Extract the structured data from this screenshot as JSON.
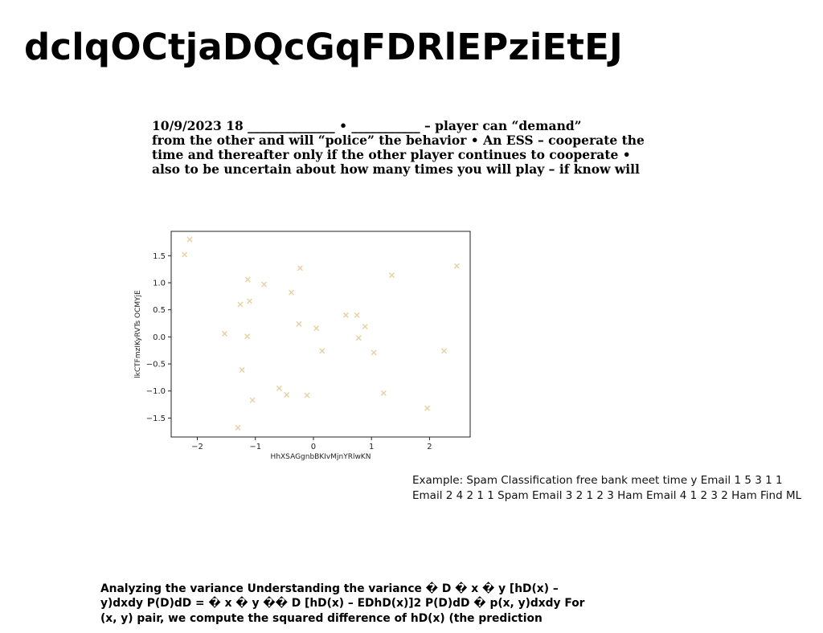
{
  "title": "dclqOCtjaDQcGqFDRlEPziEtEJ",
  "paragraph1": [
    "10/9/2023 18 ______________ • ___________ – player can “demand”",
    "from the other  and will “police” the behavior • An ESS – cooperate the",
    "time and thereafter only if the other player continues to cooperate •",
    "also to be uncertain about how many times you will play – if know will"
  ],
  "paragraph2": [
    "Example: Spam Classification free bank meet time y Email 1 5 3 1 1",
    "Email 2 4 2 1 1 Spam Email 3 2 1 2 3 Ham Email 4 1 2 3 2 Ham Find ML"
  ],
  "paragraph3": [
    "Analyzing the variance Understanding the variance � D � x � y [hD(x) –",
    "y)dxdy P(D)dD = � x � y �� D [hD(x) – EDhD(x)]2 P(D)dD � p(x, y)dxdy For",
    "(x, y) pair, we compute the squared difference of hD(x) (the prediction"
  ],
  "chart_data": {
    "type": "scatter",
    "xlabel": "HhXSAGgnbBKIvMjnYRlwKN",
    "ylabel": "lkCTFmzIKyRVTs OCMYjE",
    "xlim": [
      -2.45,
      2.7
    ],
    "ylim": [
      -1.85,
      1.95
    ],
    "xticks": [
      -2,
      -1,
      0,
      1,
      2
    ],
    "yticks": [
      -1.5,
      -1.0,
      -0.5,
      0.0,
      0.5,
      1.0,
      1.5
    ],
    "marker": "x",
    "color": "#e8cfa0",
    "points": [
      [
        -2.13,
        1.8
      ],
      [
        -2.22,
        1.52
      ],
      [
        -1.13,
        1.06
      ],
      [
        -0.85,
        0.97
      ],
      [
        -0.23,
        1.27
      ],
      [
        1.35,
        1.14
      ],
      [
        2.47,
        1.31
      ],
      [
        -1.26,
        0.6
      ],
      [
        -1.1,
        0.66
      ],
      [
        -0.38,
        0.82
      ],
      [
        -1.53,
        0.06
      ],
      [
        -1.14,
        0.01
      ],
      [
        -0.25,
        0.24
      ],
      [
        0.05,
        0.16
      ],
      [
        0.56,
        0.4
      ],
      [
        0.75,
        0.4
      ],
      [
        0.89,
        0.19
      ],
      [
        0.78,
        -0.02
      ],
      [
        0.15,
        -0.26
      ],
      [
        1.04,
        -0.29
      ],
      [
        2.25,
        -0.26
      ],
      [
        -1.23,
        -0.61
      ],
      [
        -0.59,
        -0.95
      ],
      [
        -0.46,
        -1.07
      ],
      [
        -0.11,
        -1.08
      ],
      [
        -1.05,
        -1.17
      ],
      [
        1.21,
        -1.04
      ],
      [
        1.96,
        -1.32
      ],
      [
        -1.3,
        -1.68
      ]
    ]
  }
}
